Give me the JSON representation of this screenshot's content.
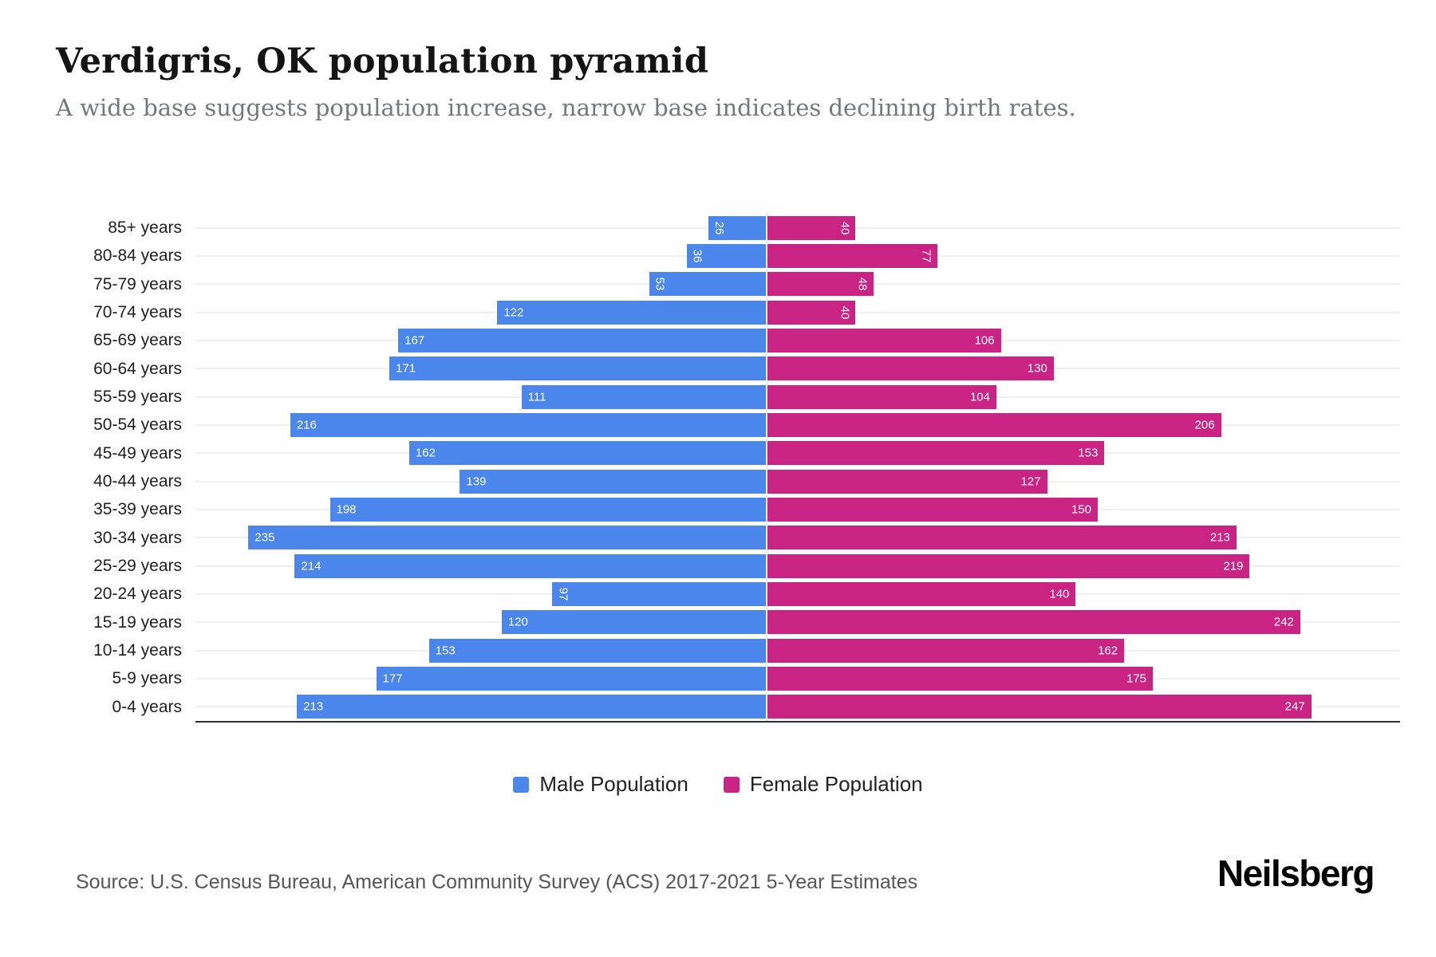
{
  "header": {
    "title": "Verdigris, OK population pyramid",
    "subtitle": "A wide base suggests population increase, narrow base indicates declining birth rates."
  },
  "chart_data": {
    "type": "bar",
    "variant": "population-pyramid",
    "orientation": "horizontal",
    "categories": [
      "85+ years",
      "80-84 years",
      "75-79 years",
      "70-74 years",
      "65-69 years",
      "60-64 years",
      "55-59 years",
      "50-54 years",
      "45-49 years",
      "40-44 years",
      "35-39 years",
      "30-34 years",
      "25-29 years",
      "20-24 years",
      "15-19 years",
      "10-14 years",
      "5-9 years",
      "0-4 years"
    ],
    "series": [
      {
        "name": "Male Population",
        "side": "left",
        "color": "#4a86ec",
        "values": [
          26,
          36,
          53,
          122,
          167,
          171,
          111,
          216,
          162,
          139,
          198,
          235,
          214,
          97,
          120,
          153,
          177,
          213
        ]
      },
      {
        "name": "Female Population",
        "side": "right",
        "color": "#c92383",
        "values": [
          40,
          77,
          48,
          40,
          106,
          130,
          104,
          206,
          153,
          127,
          150,
          213,
          219,
          140,
          242,
          162,
          175,
          247
        ]
      }
    ],
    "xlim_each_side": [
      0,
      250
    ],
    "value_labels": "inside outer end, white; rotated vertical when value < 100",
    "grid": "light horizontal line per category row",
    "axis_line": "dark bottom baseline",
    "legend_position": "bottom-center"
  },
  "legend": {
    "items": [
      {
        "label": "Male Population",
        "color": "#4a86ec"
      },
      {
        "label": "Female Population",
        "color": "#c92383"
      }
    ]
  },
  "footer": {
    "source": "Source: U.S. Census Bureau, American Community Survey (ACS) 2017-2021 5-Year Estimates",
    "brand": "Neilsberg"
  },
  "colors": {
    "male": "#4a86ec",
    "female": "#c92383",
    "gridline": "#efefef",
    "axis": "#2f2f2f",
    "center_divider": "#e4ecf9",
    "title": "#141414",
    "subtitle": "#75787b",
    "source_text": "#565656"
  }
}
